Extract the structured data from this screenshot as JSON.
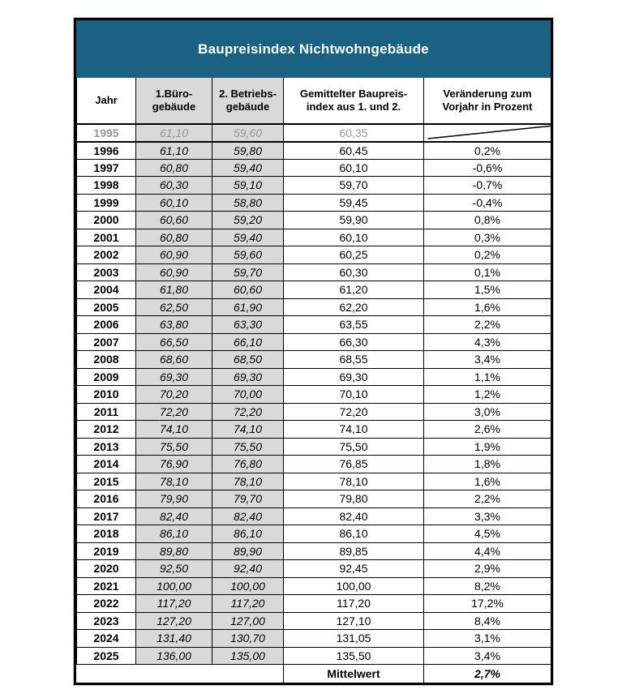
{
  "title": "Baupreisindex Nichtwohngebäude",
  "header": {
    "col_year": "Jahr",
    "col_office": {
      "l1": "1.Büro-",
      "l2": "gebäude"
    },
    "col_operations": {
      "l1": "2. Betriebs-",
      "l2": "gebäude"
    },
    "col_mean_index": {
      "l1": "Gemittelter Baupreis-",
      "l2": "index aus 1. und 2."
    },
    "col_change": {
      "l1": "Veränderung zum",
      "l2": "Vorjahr in Prozent"
    }
  },
  "rows": [
    {
      "year": "1995",
      "buero": "61,10",
      "betriebs": "59,60",
      "index": "60,35",
      "change": null,
      "muted": true
    },
    {
      "year": "1996",
      "buero": "61,10",
      "betriebs": "59,80",
      "index": "60,45",
      "change": "0,2%",
      "muted": false
    },
    {
      "year": "1997",
      "buero": "60,80",
      "betriebs": "59,40",
      "index": "60,10",
      "change": "-0,6%",
      "muted": false
    },
    {
      "year": "1998",
      "buero": "60,30",
      "betriebs": "59,10",
      "index": "59,70",
      "change": "-0,7%",
      "muted": false
    },
    {
      "year": "1999",
      "buero": "60,10",
      "betriebs": "58,80",
      "index": "59,45",
      "change": "-0,4%",
      "muted": false
    },
    {
      "year": "2000",
      "buero": "60,60",
      "betriebs": "59,20",
      "index": "59,90",
      "change": "0,8%",
      "muted": false
    },
    {
      "year": "2001",
      "buero": "60,80",
      "betriebs": "59,40",
      "index": "60,10",
      "change": "0,3%",
      "muted": false
    },
    {
      "year": "2002",
      "buero": "60,90",
      "betriebs": "59,60",
      "index": "60,25",
      "change": "0,2%",
      "muted": false
    },
    {
      "year": "2003",
      "buero": "60,90",
      "betriebs": "59,70",
      "index": "60,30",
      "change": "0,1%",
      "muted": false
    },
    {
      "year": "2004",
      "buero": "61,80",
      "betriebs": "60,60",
      "index": "61,20",
      "change": "1,5%",
      "muted": false
    },
    {
      "year": "2005",
      "buero": "62,50",
      "betriebs": "61,90",
      "index": "62,20",
      "change": "1,6%",
      "muted": false
    },
    {
      "year": "2006",
      "buero": "63,80",
      "betriebs": "63,30",
      "index": "63,55",
      "change": "2,2%",
      "muted": false
    },
    {
      "year": "2007",
      "buero": "66,50",
      "betriebs": "66,10",
      "index": "66,30",
      "change": "4,3%",
      "muted": false
    },
    {
      "year": "2008",
      "buero": "68,60",
      "betriebs": "68,50",
      "index": "68,55",
      "change": "3,4%",
      "muted": false
    },
    {
      "year": "2009",
      "buero": "69,30",
      "betriebs": "69,30",
      "index": "69,30",
      "change": "1,1%",
      "muted": false
    },
    {
      "year": "2010",
      "buero": "70,20",
      "betriebs": "70,00",
      "index": "70,10",
      "change": "1,2%",
      "muted": false
    },
    {
      "year": "2011",
      "buero": "72,20",
      "betriebs": "72,20",
      "index": "72,20",
      "change": "3,0%",
      "muted": false
    },
    {
      "year": "2012",
      "buero": "74,10",
      "betriebs": "74,10",
      "index": "74,10",
      "change": "2,6%",
      "muted": false
    },
    {
      "year": "2013",
      "buero": "75,50",
      "betriebs": "75,50",
      "index": "75,50",
      "change": "1,9%",
      "muted": false
    },
    {
      "year": "2014",
      "buero": "76,90",
      "betriebs": "76,80",
      "index": "76,85",
      "change": "1,8%",
      "muted": false
    },
    {
      "year": "2015",
      "buero": "78,10",
      "betriebs": "78,10",
      "index": "78,10",
      "change": "1,6%",
      "muted": false
    },
    {
      "year": "2016",
      "buero": "79,90",
      "betriebs": "79,70",
      "index": "79,80",
      "change": "2,2%",
      "muted": false
    },
    {
      "year": "2017",
      "buero": "82,40",
      "betriebs": "82,40",
      "index": "82,40",
      "change": "3,3%",
      "muted": false
    },
    {
      "year": "2018",
      "buero": "86,10",
      "betriebs": "86,10",
      "index": "86,10",
      "change": "4,5%",
      "muted": false
    },
    {
      "year": "2019",
      "buero": "89,80",
      "betriebs": "89,90",
      "index": "89,85",
      "change": "4,4%",
      "muted": false
    },
    {
      "year": "2020",
      "buero": "92,50",
      "betriebs": "92,40",
      "index": "92,45",
      "change": "2,9%",
      "muted": false
    },
    {
      "year": "2021",
      "buero": "100,00",
      "betriebs": "100,00",
      "index": "100,00",
      "change": "8,2%",
      "muted": false
    },
    {
      "year": "2022",
      "buero": "117,20",
      "betriebs": "117,20",
      "index": "117,20",
      "change": "17,2%",
      "muted": false
    },
    {
      "year": "2023",
      "buero": "127,20",
      "betriebs": "127,00",
      "index": "127,10",
      "change": "8,4%",
      "muted": false
    },
    {
      "year": "2024",
      "buero": "131,40",
      "betriebs": "130,70",
      "index": "131,05",
      "change": "3,1%",
      "muted": false
    },
    {
      "year": "2025",
      "buero": "136,00",
      "betriebs": "135,00",
      "index": "135,50",
      "change": "3,4%",
      "muted": false
    }
  ],
  "footer": {
    "label": "Mittelwert",
    "value": "2,7%"
  },
  "colors": {
    "title_bg": "#1A6283",
    "title_text": "#FFFFFF",
    "shaded_column_bg": "#D9D9D9",
    "muted_row_text": "#969696",
    "border": "#000000"
  }
}
